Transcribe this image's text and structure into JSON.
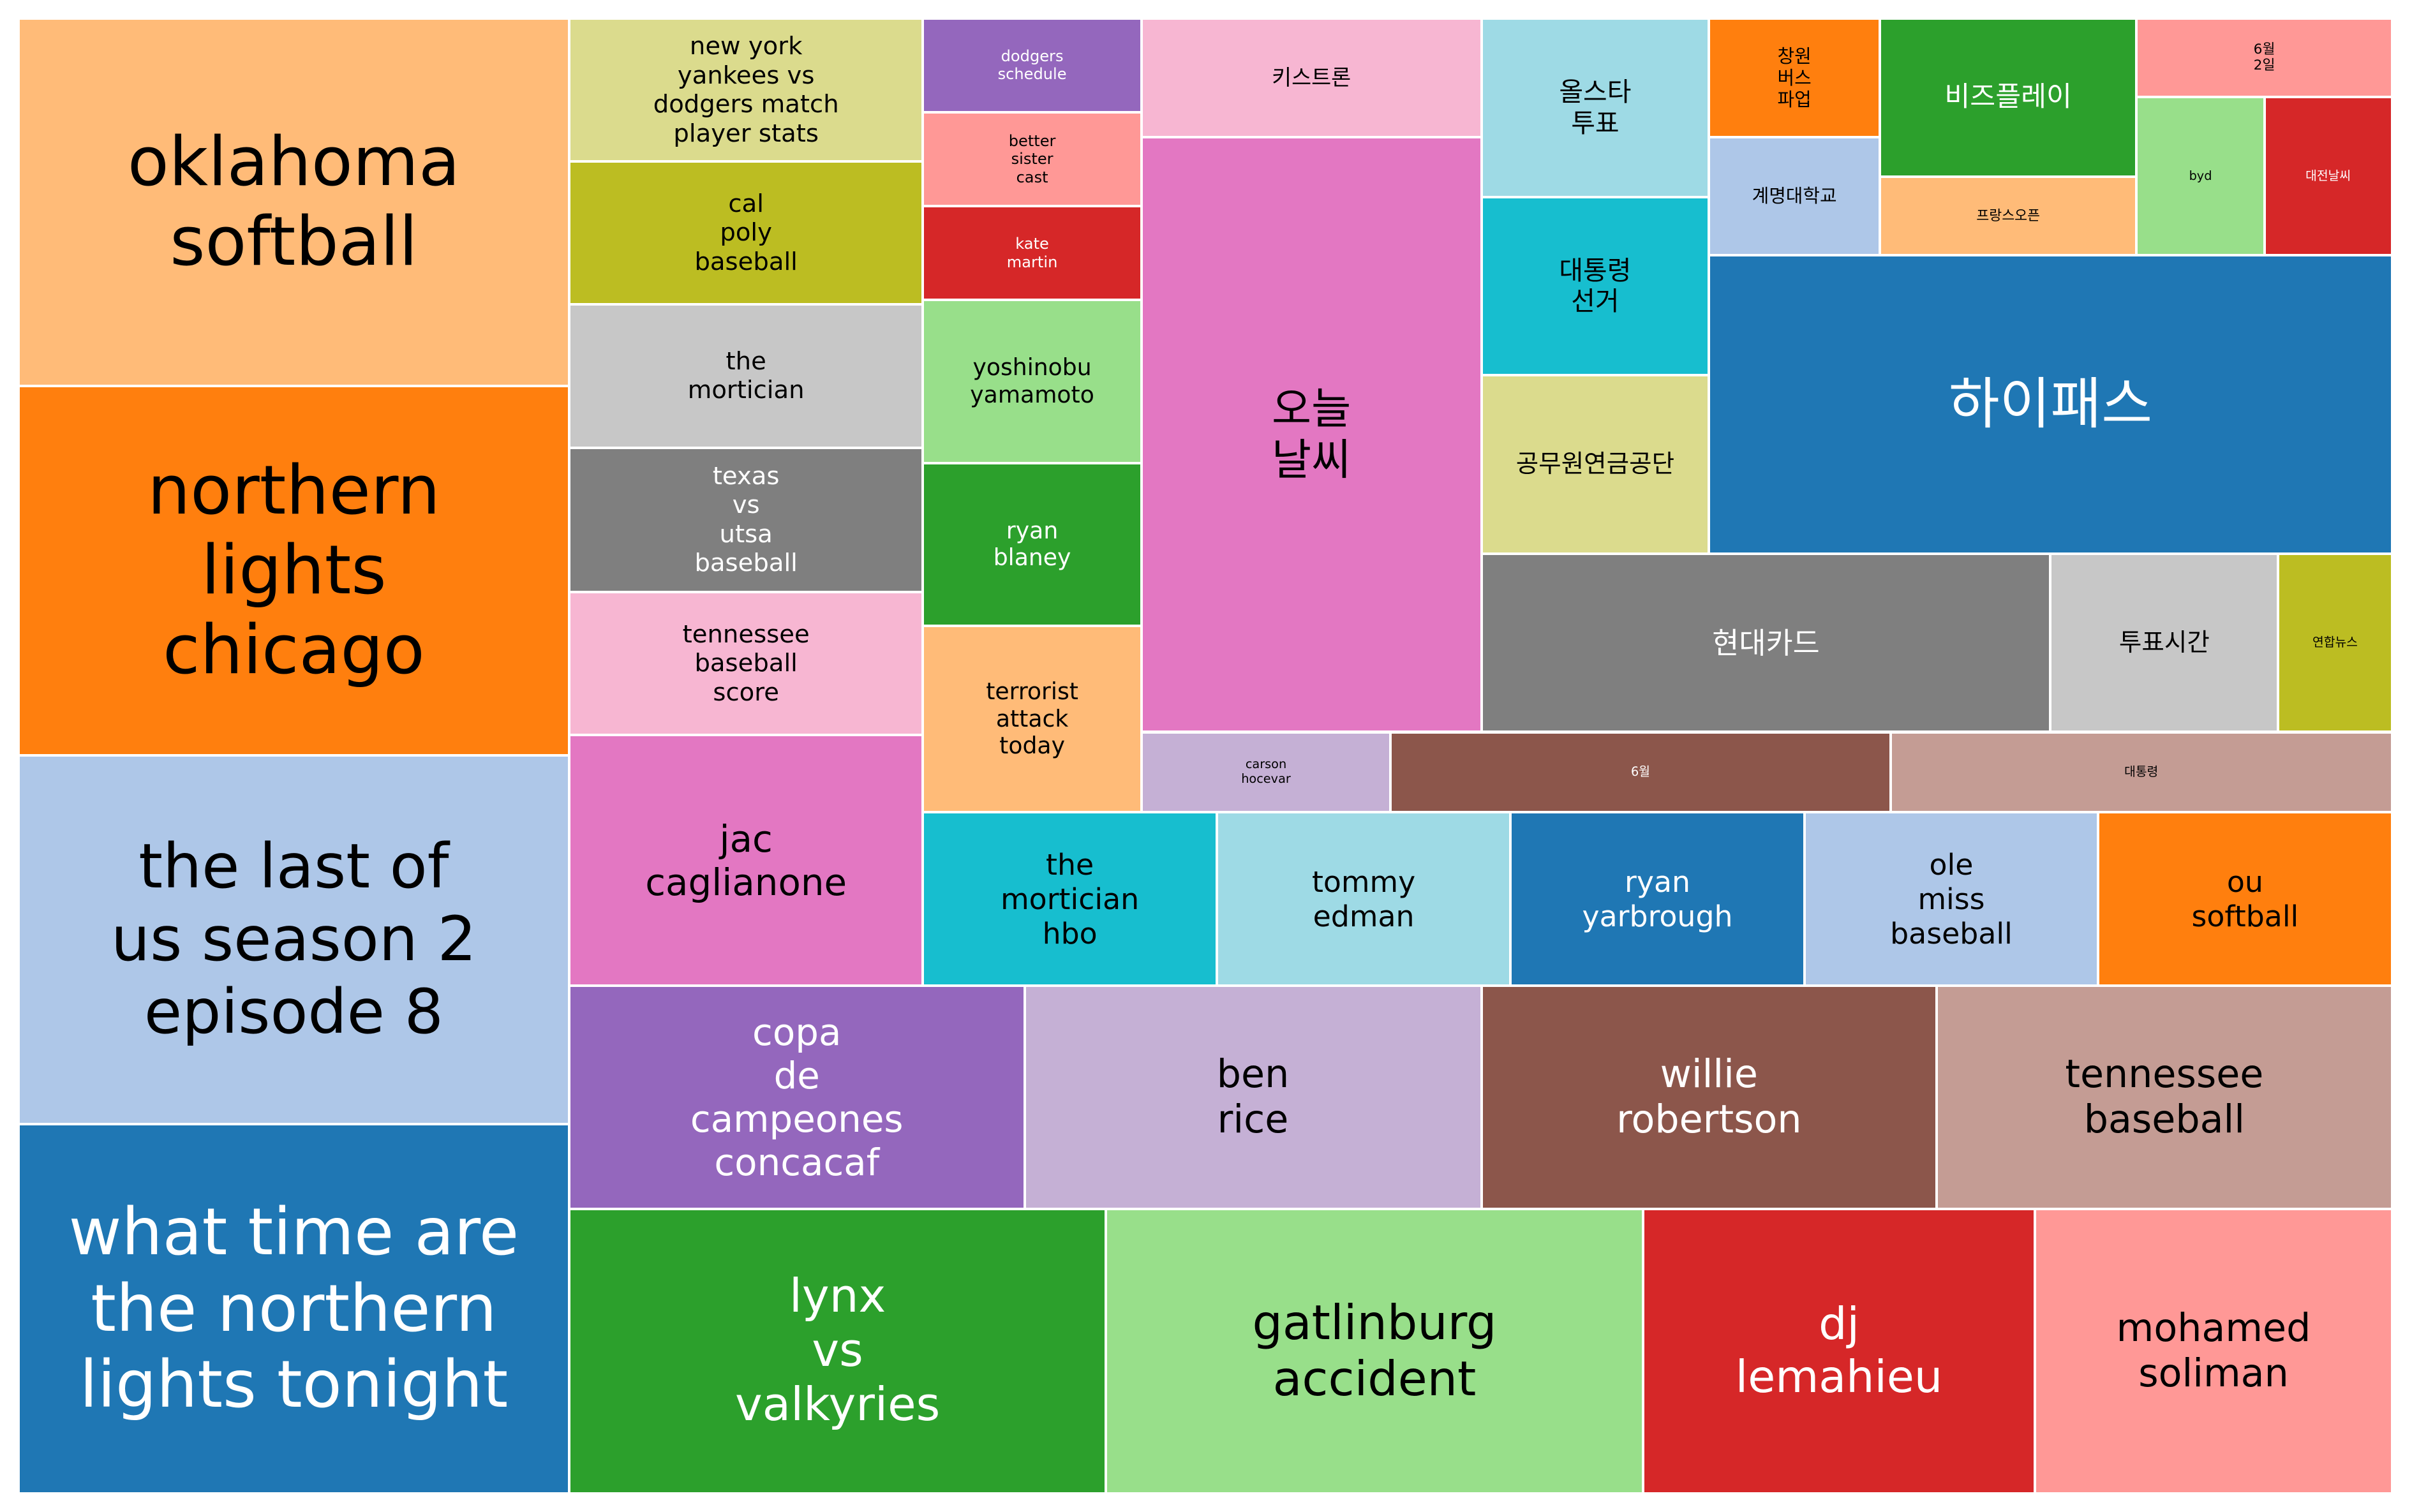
{
  "chart_data": {
    "type": "treemap",
    "tiles": [
      {
        "label": "oklahoma\nsoftball",
        "color": "#ffbb78",
        "text_color": "#000000"
      },
      {
        "label": "northern\nlights\nchicago",
        "color": "#ff7f0e",
        "text_color": "#000000"
      },
      {
        "label": "the last of\nus season 2\nepisode 8",
        "color": "#aec7e8",
        "text_color": "#000000"
      },
      {
        "label": "what time are\nthe northern\nlights tonight",
        "color": "#1f77b4",
        "text_color": "#ffffff"
      },
      {
        "label": "new york\nyankees vs\ndodgers match\nplayer stats",
        "color": "#dbdb8d",
        "text_color": "#000000"
      },
      {
        "label": "cal\npoly\nbaseball",
        "color": "#bcbd22",
        "text_color": "#000000"
      },
      {
        "label": "the\nmortician",
        "color": "#c7c7c7",
        "text_color": "#000000"
      },
      {
        "label": "texas\nvs\nutsa\nbaseball",
        "color": "#7f7f7f",
        "text_color": "#ffffff"
      },
      {
        "label": "tennessee\nbaseball\nscore",
        "color": "#f7b6d2",
        "text_color": "#000000"
      },
      {
        "label": "jac\ncaglianone",
        "color": "#e377c2",
        "text_color": "#000000"
      },
      {
        "label": "dodgers\nschedule",
        "color": "#9467bd",
        "text_color": "#ffffff"
      },
      {
        "label": "better\nsister\ncast",
        "color": "#ff9896",
        "text_color": "#000000"
      },
      {
        "label": "kate\nmartin",
        "color": "#d62728",
        "text_color": "#ffffff"
      },
      {
        "label": "yoshinobu\nyamamoto",
        "color": "#98df8a",
        "text_color": "#000000"
      },
      {
        "label": "ryan\nblaney",
        "color": "#2ca02c",
        "text_color": "#ffffff"
      },
      {
        "label": "terrorist\nattack\ntoday",
        "color": "#ffbb78",
        "text_color": "#000000"
      },
      {
        "label": "키스트론",
        "color": "#f7b6d2",
        "text_color": "#000000"
      },
      {
        "label": "오늘\n날씨",
        "color": "#e377c2",
        "text_color": "#000000"
      },
      {
        "label": "올스타\n투표",
        "color": "#9edae5",
        "text_color": "#000000"
      },
      {
        "label": "대통령\n선거",
        "color": "#17becf",
        "text_color": "#000000"
      },
      {
        "label": "공무원연금공단",
        "color": "#dbdb8d",
        "text_color": "#000000"
      },
      {
        "label": "창원\n버스\n파업",
        "color": "#ff7f0e",
        "text_color": "#000000"
      },
      {
        "label": "계명대학교",
        "color": "#aec7e8",
        "text_color": "#000000"
      },
      {
        "label": "비즈플레이",
        "color": "#2ca02c",
        "text_color": "#ffffff"
      },
      {
        "label": "프랑스오픈",
        "color": "#ffbb78",
        "text_color": "#000000"
      },
      {
        "label": "6월\n2일",
        "color": "#ff9896",
        "text_color": "#000000"
      },
      {
        "label": "byd",
        "color": "#98df8a",
        "text_color": "#000000"
      },
      {
        "label": "대전날씨",
        "color": "#d62728",
        "text_color": "#ffffff"
      },
      {
        "label": "하이패스",
        "color": "#1f77b4",
        "text_color": "#ffffff"
      },
      {
        "label": "현대카드",
        "color": "#7f7f7f",
        "text_color": "#ffffff"
      },
      {
        "label": "투표시간",
        "color": "#c7c7c7",
        "text_color": "#000000"
      },
      {
        "label": "연합뉴스",
        "color": "#bcbd22",
        "text_color": "#000000"
      },
      {
        "label": "carson\nhocevar",
        "color": "#c5b0d5",
        "text_color": "#000000"
      },
      {
        "label": "6월",
        "color": "#8c564b",
        "text_color": "#ffffff"
      },
      {
        "label": "대통령",
        "color": "#c49c94",
        "text_color": "#000000"
      },
      {
        "label": "the\nmortician\nhbo",
        "color": "#17becf",
        "text_color": "#000000"
      },
      {
        "label": "tommy\nedman",
        "color": "#9edae5",
        "text_color": "#000000"
      },
      {
        "label": "ryan\nyarbrough",
        "color": "#1f77b4",
        "text_color": "#ffffff"
      },
      {
        "label": "ole\nmiss\nbaseball",
        "color": "#aec7e8",
        "text_color": "#000000"
      },
      {
        "label": "ou\nsoftball",
        "color": "#ff7f0e",
        "text_color": "#000000"
      },
      {
        "label": "copa\nde\ncampeones\nconcacaf",
        "color": "#9467bd",
        "text_color": "#ffffff"
      },
      {
        "label": "ben\nrice",
        "color": "#c5b0d5",
        "text_color": "#000000"
      },
      {
        "label": "willie\nrobertson",
        "color": "#8c564b",
        "text_color": "#ffffff"
      },
      {
        "label": "tennessee\nbaseball",
        "color": "#c49c94",
        "text_color": "#000000"
      },
      {
        "label": "lynx\nvs\nvalkyries",
        "color": "#2ca02c",
        "text_color": "#ffffff"
      },
      {
        "label": "gatlinburg\naccident",
        "color": "#98df8a",
        "text_color": "#000000"
      },
      {
        "label": "dj\nlemahieu",
        "color": "#d62728",
        "text_color": "#ffffff"
      },
      {
        "label": "mohamed\nsoliman",
        "color": "#ff9896",
        "text_color": "#000000"
      }
    ]
  }
}
